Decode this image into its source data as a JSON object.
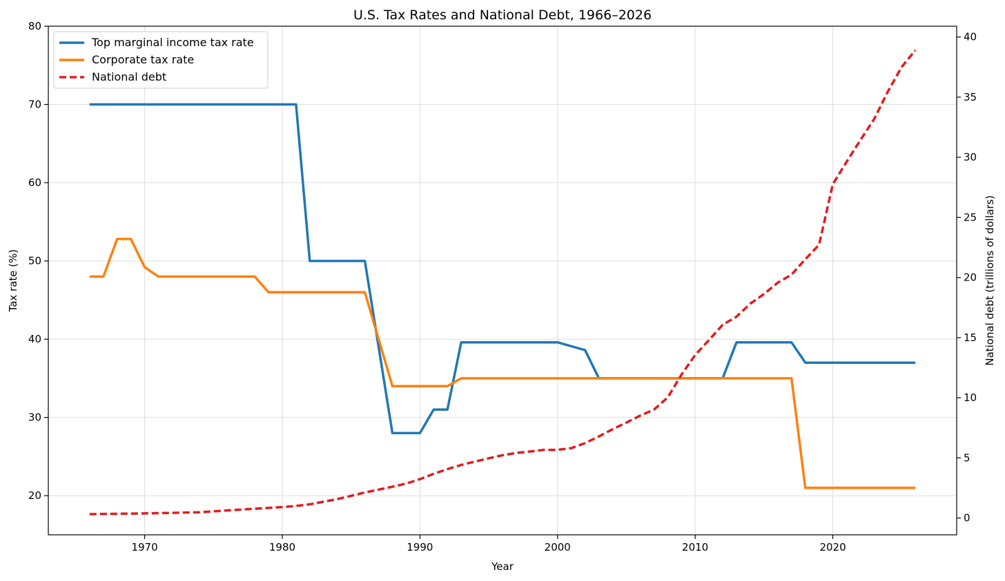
{
  "chart_data": {
    "type": "line",
    "title": "U.S. Tax Rates and National Debt, 1966–2026",
    "xlabel": "Year",
    "ylabel_left": "Tax rate (%)",
    "ylabel_right": "National debt (trillions of dollars)",
    "xlim": [
      1963,
      2029
    ],
    "ylim_left": [
      15,
      80
    ],
    "ylim_right": [
      -1.4,
      40.9
    ],
    "x_ticks": [
      1970,
      1980,
      1990,
      2000,
      2010,
      2020
    ],
    "y_ticks_left": [
      20,
      30,
      40,
      50,
      60,
      70,
      80
    ],
    "y_ticks_right": [
      0,
      5,
      10,
      15,
      20,
      25,
      30,
      35,
      40
    ],
    "grid": true,
    "legend_position": "upper-left",
    "series": [
      {
        "name": "Top marginal income tax rate",
        "axis": "left",
        "color": "#1f77b4",
        "style": "solid",
        "points": [
          [
            1966,
            70
          ],
          [
            1981,
            70
          ],
          [
            1982,
            50
          ],
          [
            1986,
            50
          ],
          [
            1988,
            28
          ],
          [
            1990,
            28
          ],
          [
            1991,
            31
          ],
          [
            1992,
            31
          ],
          [
            1993,
            39.6
          ],
          [
            2000,
            39.6
          ],
          [
            2002,
            38.6
          ],
          [
            2003,
            35
          ],
          [
            2012,
            35
          ],
          [
            2013,
            39.6
          ],
          [
            2017,
            39.6
          ],
          [
            2018,
            37
          ],
          [
            2026,
            37
          ]
        ]
      },
      {
        "name": "Corporate tax rate",
        "axis": "left",
        "color": "#ff7f0e",
        "style": "solid",
        "points": [
          [
            1966,
            48
          ],
          [
            1967,
            48
          ],
          [
            1968,
            52.8
          ],
          [
            1969,
            52.8
          ],
          [
            1970,
            49.2
          ],
          [
            1971,
            48
          ],
          [
            1978,
            48
          ],
          [
            1979,
            46
          ],
          [
            1986,
            46
          ],
          [
            1988,
            34
          ],
          [
            1992,
            34
          ],
          [
            1993,
            35
          ],
          [
            2017,
            35
          ],
          [
            2018,
            21
          ],
          [
            2026,
            21
          ]
        ]
      },
      {
        "name": "National debt",
        "axis": "right",
        "color": "#e41a1c",
        "style": "dashed",
        "points": [
          [
            1966,
            0.32
          ],
          [
            1968,
            0.35
          ],
          [
            1970,
            0.38
          ],
          [
            1972,
            0.43
          ],
          [
            1974,
            0.48
          ],
          [
            1976,
            0.63
          ],
          [
            1978,
            0.77
          ],
          [
            1980,
            0.91
          ],
          [
            1981,
            1.0
          ],
          [
            1982,
            1.14
          ],
          [
            1984,
            1.57
          ],
          [
            1986,
            2.12
          ],
          [
            1988,
            2.6
          ],
          [
            1989,
            2.86
          ],
          [
            1990,
            3.23
          ],
          [
            1991,
            3.67
          ],
          [
            1992,
            4.06
          ],
          [
            1993,
            4.41
          ],
          [
            1994,
            4.69
          ],
          [
            1995,
            4.97
          ],
          [
            1996,
            5.22
          ],
          [
            1997,
            5.41
          ],
          [
            1998,
            5.53
          ],
          [
            1999,
            5.66
          ],
          [
            2000,
            5.67
          ],
          [
            2001,
            5.81
          ],
          [
            2002,
            6.23
          ],
          [
            2003,
            6.78
          ],
          [
            2004,
            7.38
          ],
          [
            2005,
            7.93
          ],
          [
            2006,
            8.51
          ],
          [
            2007,
            9.01
          ],
          [
            2008,
            10.02
          ],
          [
            2009,
            11.91
          ],
          [
            2010,
            13.56
          ],
          [
            2011,
            14.79
          ],
          [
            2012,
            16.07
          ],
          [
            2013,
            16.74
          ],
          [
            2014,
            17.82
          ],
          [
            2015,
            18.62
          ],
          [
            2016,
            19.57
          ],
          [
            2017,
            20.24
          ],
          [
            2018,
            21.52
          ],
          [
            2019,
            22.72
          ],
          [
            2020,
            27.75
          ],
          [
            2021,
            29.62
          ],
          [
            2022,
            31.42
          ],
          [
            2023,
            33.17
          ],
          [
            2024,
            35.46
          ],
          [
            2025,
            37.5
          ],
          [
            2026,
            38.9
          ]
        ]
      }
    ]
  }
}
